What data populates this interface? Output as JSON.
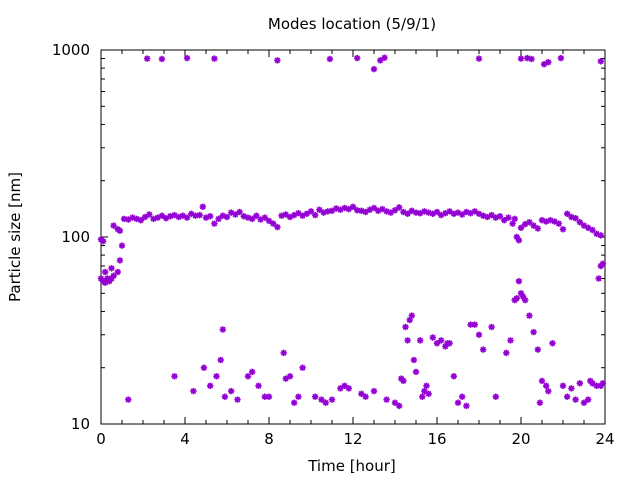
{
  "chart_data": {
    "type": "scatter",
    "title": "Modes location (5/9/1)",
    "xlabel": "Time [hour]",
    "ylabel": "Particle size [nm]",
    "xlim": [
      0,
      24
    ],
    "ylim": [
      10,
      1000
    ],
    "yscale": "log",
    "x_ticks": [
      0,
      4,
      8,
      12,
      16,
      20,
      24
    ],
    "x_tick_labels": [
      "0",
      "4",
      "8",
      "12",
      "16",
      "20",
      "24"
    ],
    "y_ticks": [
      10,
      100,
      1000
    ],
    "y_tick_labels": [
      "10",
      "100",
      "1000"
    ],
    "grid": false,
    "marker_color": "#9400d3",
    "series": [
      {
        "points": [
          [
            0.0,
            97
          ],
          [
            0.1,
            95
          ],
          [
            0.0,
            60
          ],
          [
            0.1,
            58
          ],
          [
            0.2,
            57
          ],
          [
            0.3,
            60
          ],
          [
            0.4,
            58
          ],
          [
            0.5,
            60
          ],
          [
            0.6,
            62
          ],
          [
            0.2,
            65
          ],
          [
            0.5,
            68
          ],
          [
            0.8,
            65
          ],
          [
            0.9,
            75
          ],
          [
            1.0,
            90
          ],
          [
            0.6,
            115
          ],
          [
            0.8,
            110
          ],
          [
            0.9,
            108
          ],
          [
            1.1,
            125
          ],
          [
            1.3,
            124
          ],
          [
            1.5,
            127
          ],
          [
            1.7,
            125
          ],
          [
            1.9,
            123
          ],
          [
            2.1,
            128
          ],
          [
            2.3,
            132
          ],
          [
            2.5,
            125
          ],
          [
            2.7,
            127
          ],
          [
            2.9,
            130
          ],
          [
            3.1,
            126
          ],
          [
            3.3,
            129
          ],
          [
            3.5,
            131
          ],
          [
            3.7,
            128
          ],
          [
            3.9,
            130
          ],
          [
            4.1,
            127
          ],
          [
            4.3,
            133
          ],
          [
            4.5,
            130
          ],
          [
            4.7,
            131
          ],
          [
            4.85,
            145
          ],
          [
            5.0,
            127
          ],
          [
            5.2,
            129
          ],
          [
            5.4,
            118
          ],
          [
            5.6,
            125
          ],
          [
            5.8,
            130
          ],
          [
            6.0,
            128
          ],
          [
            6.2,
            135
          ],
          [
            6.4,
            132
          ],
          [
            6.6,
            136
          ],
          [
            6.8,
            129
          ],
          [
            7.0,
            127
          ],
          [
            7.2,
            125
          ],
          [
            7.4,
            130
          ],
          [
            7.6,
            124
          ],
          [
            7.8,
            127
          ],
          [
            8.0,
            122
          ],
          [
            8.2,
            118
          ],
          [
            8.4,
            113
          ],
          [
            8.6,
            130
          ],
          [
            8.8,
            132
          ],
          [
            9.0,
            128
          ],
          [
            9.2,
            131
          ],
          [
            9.4,
            134
          ],
          [
            9.6,
            130
          ],
          [
            9.8,
            133
          ],
          [
            10.0,
            137
          ],
          [
            10.2,
            131
          ],
          [
            10.4,
            140
          ],
          [
            10.6,
            135
          ],
          [
            10.8,
            137
          ],
          [
            11.0,
            138
          ],
          [
            11.2,
            142
          ],
          [
            11.4,
            140
          ],
          [
            11.6,
            143
          ],
          [
            11.8,
            141
          ],
          [
            12.0,
            145
          ],
          [
            12.2,
            139
          ],
          [
            12.4,
            138
          ],
          [
            12.6,
            136
          ],
          [
            12.8,
            140
          ],
          [
            13.0,
            143
          ],
          [
            13.2,
            138
          ],
          [
            13.4,
            141
          ],
          [
            13.6,
            137
          ],
          [
            13.8,
            135
          ],
          [
            14.0,
            139
          ],
          [
            14.2,
            144
          ],
          [
            14.4,
            136
          ],
          [
            14.6,
            133
          ],
          [
            14.8,
            138
          ],
          [
            15.0,
            135
          ],
          [
            15.2,
            134
          ],
          [
            15.4,
            137
          ],
          [
            15.6,
            135
          ],
          [
            15.8,
            133
          ],
          [
            16.0,
            136
          ],
          [
            16.2,
            131
          ],
          [
            16.4,
            134
          ],
          [
            16.6,
            137
          ],
          [
            16.8,
            133
          ],
          [
            17.0,
            135
          ],
          [
            17.2,
            132
          ],
          [
            17.4,
            136
          ],
          [
            17.6,
            134
          ],
          [
            17.8,
            137
          ],
          [
            18.0,
            133
          ],
          [
            18.2,
            130
          ],
          [
            18.4,
            128
          ],
          [
            18.6,
            131
          ],
          [
            18.8,
            127
          ],
          [
            19.0,
            129
          ],
          [
            19.2,
            123
          ],
          [
            19.4,
            127
          ],
          [
            19.6,
            118
          ],
          [
            19.7,
            125
          ],
          [
            19.8,
            100
          ],
          [
            19.9,
            96
          ],
          [
            20.0,
            112
          ],
          [
            20.2,
            117
          ],
          [
            20.4,
            120
          ],
          [
            20.6,
            115
          ],
          [
            20.8,
            111
          ],
          [
            21.0,
            123
          ],
          [
            21.2,
            121
          ],
          [
            21.4,
            123
          ],
          [
            21.6,
            121
          ],
          [
            21.8,
            118
          ],
          [
            22.0,
            110
          ],
          [
            22.2,
            133
          ],
          [
            22.4,
            128
          ],
          [
            22.6,
            126
          ],
          [
            22.8,
            120
          ],
          [
            23.0,
            115
          ],
          [
            23.2,
            112
          ],
          [
            23.4,
            109
          ],
          [
            23.6,
            104
          ],
          [
            23.8,
            102
          ],
          [
            2.2,
            900
          ],
          [
            2.9,
            895
          ],
          [
            4.1,
            905
          ],
          [
            5.4,
            900
          ],
          [
            8.4,
            880
          ],
          [
            10.9,
            895
          ],
          [
            12.2,
            905
          ],
          [
            13.0,
            790
          ],
          [
            13.3,
            880
          ],
          [
            13.5,
            910
          ],
          [
            18.0,
            900
          ],
          [
            20.0,
            900
          ],
          [
            20.3,
            905
          ],
          [
            20.5,
            895
          ],
          [
            21.1,
            840
          ],
          [
            21.3,
            860
          ],
          [
            21.9,
            905
          ],
          [
            23.8,
            870
          ],
          [
            1.3,
            13.5
          ],
          [
            3.5,
            18
          ],
          [
            4.4,
            15
          ],
          [
            4.9,
            20
          ],
          [
            5.2,
            16
          ],
          [
            5.5,
            18
          ],
          [
            5.7,
            22
          ],
          [
            5.8,
            32
          ],
          [
            5.9,
            14
          ],
          [
            6.2,
            15
          ],
          [
            6.5,
            13.5
          ],
          [
            7.0,
            18
          ],
          [
            7.2,
            19
          ],
          [
            7.5,
            16
          ],
          [
            7.8,
            14
          ],
          [
            8.0,
            14
          ],
          [
            8.7,
            24
          ],
          [
            8.8,
            17.5
          ],
          [
            9.0,
            18
          ],
          [
            9.2,
            13
          ],
          [
            9.4,
            14
          ],
          [
            9.6,
            20
          ],
          [
            10.2,
            14
          ],
          [
            10.5,
            13.5
          ],
          [
            10.7,
            13
          ],
          [
            11.0,
            13.5
          ],
          [
            11.4,
            15.5
          ],
          [
            11.6,
            16
          ],
          [
            11.8,
            15.5
          ],
          [
            12.4,
            14.5
          ],
          [
            12.6,
            14
          ],
          [
            13.0,
            15
          ],
          [
            13.6,
            13.5
          ],
          [
            14.0,
            13
          ],
          [
            14.2,
            12.5
          ],
          [
            14.3,
            17.5
          ],
          [
            14.4,
            17
          ],
          [
            14.5,
            33
          ],
          [
            14.6,
            28
          ],
          [
            14.7,
            36
          ],
          [
            14.8,
            38
          ],
          [
            14.9,
            22
          ],
          [
            15.0,
            19
          ],
          [
            15.2,
            28
          ],
          [
            15.3,
            14
          ],
          [
            15.4,
            15
          ],
          [
            15.5,
            16
          ],
          [
            15.6,
            14.5
          ],
          [
            15.8,
            29
          ],
          [
            16.0,
            27
          ],
          [
            16.2,
            28
          ],
          [
            16.4,
            26
          ],
          [
            16.5,
            27
          ],
          [
            16.6,
            27
          ],
          [
            16.8,
            18
          ],
          [
            17.0,
            13
          ],
          [
            17.2,
            14
          ],
          [
            17.4,
            12.5
          ],
          [
            17.6,
            34
          ],
          [
            17.8,
            34
          ],
          [
            18.0,
            30
          ],
          [
            18.2,
            25
          ],
          [
            18.6,
            33
          ],
          [
            18.8,
            14
          ],
          [
            19.3,
            24
          ],
          [
            19.5,
            28
          ],
          [
            19.7,
            46
          ],
          [
            19.8,
            47
          ],
          [
            19.9,
            58
          ],
          [
            20.0,
            50
          ],
          [
            20.1,
            48
          ],
          [
            20.2,
            46
          ],
          [
            20.4,
            38
          ],
          [
            20.6,
            31
          ],
          [
            20.8,
            25
          ],
          [
            20.9,
            13
          ],
          [
            21.0,
            17
          ],
          [
            21.2,
            16
          ],
          [
            21.3,
            15
          ],
          [
            21.5,
            27
          ],
          [
            22.0,
            16
          ],
          [
            22.2,
            14
          ],
          [
            22.4,
            15.5
          ],
          [
            22.6,
            13.5
          ],
          [
            22.8,
            16.5
          ],
          [
            23.0,
            13
          ],
          [
            23.2,
            13.5
          ],
          [
            23.3,
            17
          ],
          [
            23.4,
            16.5
          ],
          [
            23.6,
            16
          ],
          [
            23.8,
            16
          ],
          [
            23.9,
            16.5
          ],
          [
            23.7,
            60
          ],
          [
            23.8,
            70
          ],
          [
            23.9,
            72
          ]
        ]
      }
    ]
  }
}
